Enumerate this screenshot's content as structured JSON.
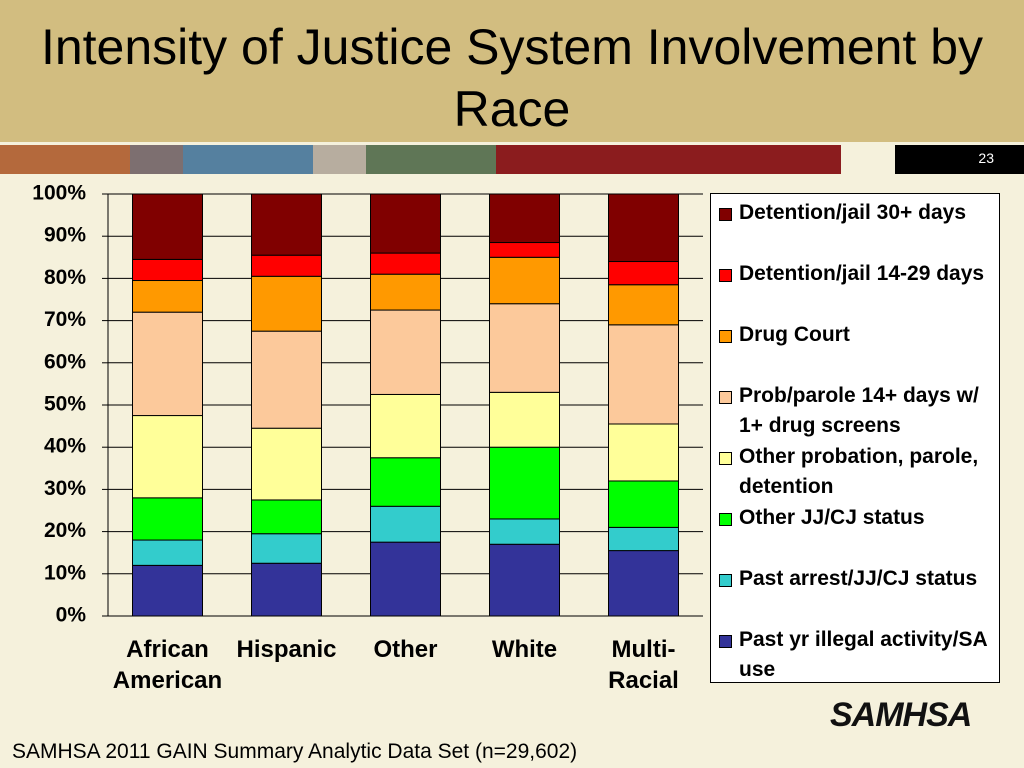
{
  "chart_data": {
    "type": "stacked_bar",
    "title": "Intensity of Justice System Involvement by Race",
    "slide_number": "23",
    "source": "SAMHSA 2011 GAIN Summary Analytic Data Set (n=29,602)",
    "logo": "SAMHSA",
    "categories": [
      "African American",
      "Hispanic",
      "Other",
      "White",
      "Multi-Racial"
    ],
    "series": [
      {
        "name": "Past yr illegal activity/SA use",
        "color": "#333399",
        "values": [
          12,
          12.5,
          17.5,
          17,
          15.5
        ]
      },
      {
        "name": "Past arrest/JJ/CJ status",
        "color": "#33cccc",
        "values": [
          6,
          7,
          8.5,
          6,
          5.5
        ]
      },
      {
        "name": "Other JJ/CJ status",
        "color": "#00ff00",
        "values": [
          10,
          8,
          11.5,
          17,
          11
        ]
      },
      {
        "name": "Other probation, parole, detention",
        "color": "#ffff99",
        "values": [
          19.5,
          17,
          15,
          13,
          13.5
        ]
      },
      {
        "name": "Prob/parole 14+ days w/ 1+ drug screens",
        "color": "#fcc99b",
        "values": [
          24.5,
          23,
          20,
          21,
          23.5
        ]
      },
      {
        "name": "Drug Court",
        "color": "#ff9900",
        "values": [
          7.5,
          13,
          8.5,
          11,
          9.5
        ]
      },
      {
        "name": "Detention/jail 14-29 days",
        "color": "#ff0000",
        "values": [
          5,
          5,
          5,
          3.5,
          5.5
        ]
      },
      {
        "name": "Detention/jail 30+ days",
        "color": "#800000",
        "values": [
          15.5,
          14.5,
          14,
          11.5,
          16
        ]
      }
    ],
    "ylim": [
      0,
      100
    ],
    "yticks": [
      {
        "value": 0,
        "label": "0%"
      },
      {
        "value": 10,
        "label": "10%"
      },
      {
        "value": 20,
        "label": "20%"
      },
      {
        "value": 30,
        "label": "30%"
      },
      {
        "value": 40,
        "label": "40%"
      },
      {
        "value": 50,
        "label": "50%"
      },
      {
        "value": 60,
        "label": "60%"
      },
      {
        "value": 70,
        "label": "70%"
      },
      {
        "value": 80,
        "label": "80%"
      },
      {
        "value": 90,
        "label": "90%"
      },
      {
        "value": 100,
        "label": "100%"
      }
    ],
    "grid": true
  }
}
